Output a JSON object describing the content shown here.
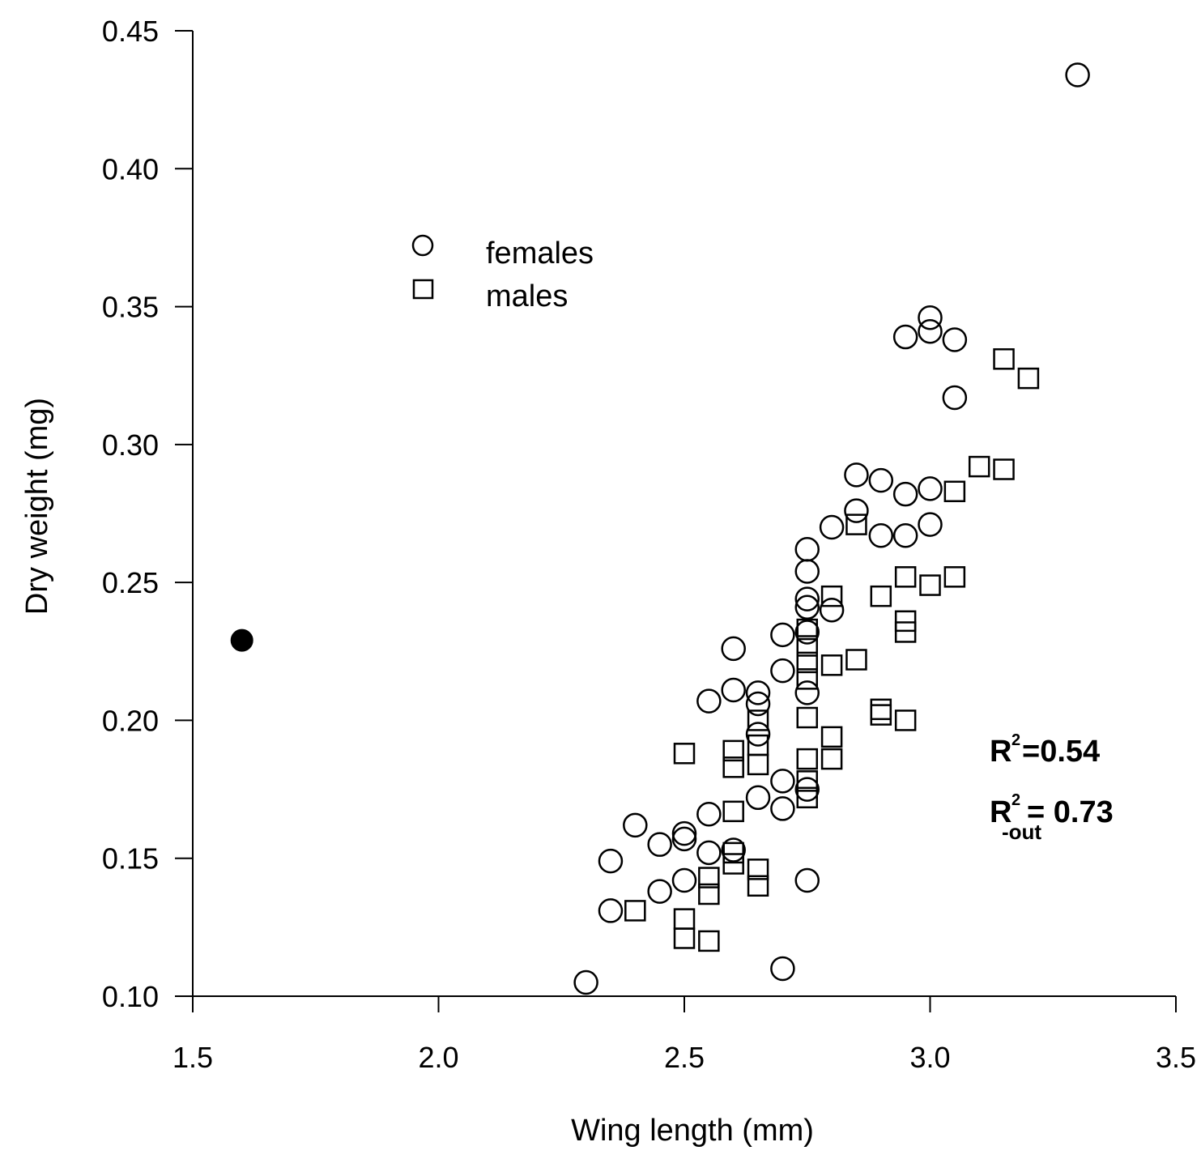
{
  "chart_data": {
    "type": "scatter",
    "xlabel": "Wing length (mm)",
    "ylabel": "Dry weight (mg)",
    "xlim": [
      1.5,
      3.5
    ],
    "ylim": [
      0.1,
      0.45
    ],
    "x_ticks": [
      "1.5",
      "2.0",
      "2.5",
      "3.0",
      "3.5"
    ],
    "y_ticks": [
      "0.10",
      "0.15",
      "0.20",
      "0.25",
      "0.30",
      "0.35",
      "0.40",
      "0.45"
    ],
    "x_tick_values": [
      1.5,
      2.0,
      2.5,
      3.0,
      3.5
    ],
    "y_tick_values": [
      0.1,
      0.15,
      0.2,
      0.25,
      0.3,
      0.35,
      0.4,
      0.45
    ],
    "grid": false,
    "legend_placement": "top-center",
    "legend": [
      {
        "label": "females",
        "marker": "open-circle"
      },
      {
        "label": "males",
        "marker": "open-square"
      }
    ],
    "annotations": {
      "r2_main": "=0.54",
      "r2_main_sup": "2",
      "r2_out_main": "= 0.73",
      "r2_out_sup": "2",
      "r2_out_sub": "-out",
      "r_letter": "R"
    },
    "series": [
      {
        "name": "females",
        "marker": "open-circle",
        "x": [
          2.3,
          2.35,
          2.35,
          2.4,
          2.45,
          2.45,
          2.5,
          2.5,
          2.5,
          2.55,
          2.55,
          2.55,
          2.6,
          2.6,
          2.6,
          2.65,
          2.65,
          2.65,
          2.65,
          2.7,
          2.7,
          2.7,
          2.7,
          2.7,
          2.75,
          2.75,
          2.75,
          2.75,
          2.75,
          2.75,
          2.75,
          2.75,
          2.8,
          2.8,
          2.85,
          2.85,
          2.9,
          2.9,
          2.95,
          2.95,
          2.95,
          3.0,
          3.0,
          3.0,
          3.0,
          3.05,
          3.05,
          3.3
        ],
        "y": [
          0.105,
          0.131,
          0.149,
          0.162,
          0.138,
          0.155,
          0.142,
          0.157,
          0.159,
          0.152,
          0.166,
          0.207,
          0.153,
          0.211,
          0.226,
          0.172,
          0.195,
          0.206,
          0.21,
          0.11,
          0.168,
          0.178,
          0.218,
          0.231,
          0.142,
          0.175,
          0.21,
          0.232,
          0.241,
          0.244,
          0.254,
          0.262,
          0.24,
          0.27,
          0.276,
          0.289,
          0.267,
          0.287,
          0.267,
          0.282,
          0.339,
          0.271,
          0.284,
          0.341,
          0.346,
          0.317,
          0.338,
          0.434
        ]
      },
      {
        "name": "males",
        "marker": "open-square",
        "x": [
          2.4,
          2.5,
          2.5,
          2.5,
          2.55,
          2.55,
          2.55,
          2.6,
          2.6,
          2.6,
          2.6,
          2.6,
          2.65,
          2.65,
          2.65,
          2.65,
          2.65,
          2.75,
          2.75,
          2.75,
          2.75,
          2.75,
          2.75,
          2.75,
          2.75,
          2.8,
          2.8,
          2.8,
          2.8,
          2.85,
          2.85,
          2.9,
          2.9,
          2.9,
          2.95,
          2.95,
          2.95,
          2.95,
          3.0,
          3.05,
          3.05,
          3.1,
          3.15,
          3.15,
          3.2
        ],
        "y": [
          0.131,
          0.121,
          0.128,
          0.188,
          0.12,
          0.137,
          0.143,
          0.148,
          0.152,
          0.167,
          0.183,
          0.189,
          0.14,
          0.146,
          0.184,
          0.191,
          0.2,
          0.172,
          0.178,
          0.186,
          0.201,
          0.215,
          0.221,
          0.227,
          0.233,
          0.186,
          0.194,
          0.22,
          0.245,
          0.222,
          0.271,
          0.202,
          0.204,
          0.245,
          0.2,
          0.232,
          0.236,
          0.252,
          0.249,
          0.252,
          0.283,
          0.292,
          0.291,
          0.331,
          0.324
        ]
      },
      {
        "name": "",
        "marker": "filled-circle",
        "x": [
          1.6
        ],
        "y": [
          0.229
        ]
      }
    ]
  }
}
